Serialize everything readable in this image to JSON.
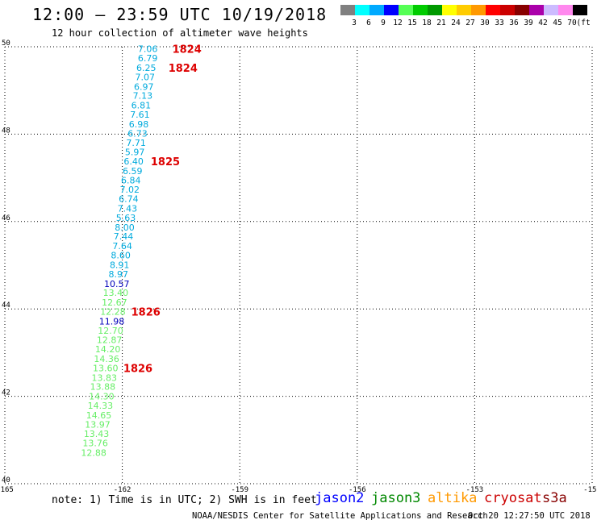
{
  "header": {
    "title": "12:00 – 23:59 UTC 10/19/2018",
    "subtitle": "12 hour collection of altimeter wave heights"
  },
  "color_scale": {
    "unit_label": "(ft)",
    "steps": [
      {
        "label": "3",
        "color": "#808080"
      },
      {
        "label": "6",
        "color": "#00ffff"
      },
      {
        "label": "9",
        "color": "#00aaff"
      },
      {
        "label": "12",
        "color": "#0000ff"
      },
      {
        "label": "15",
        "color": "#55ff55"
      },
      {
        "label": "18",
        "color": "#00cc00"
      },
      {
        "label": "21",
        "color": "#009900"
      },
      {
        "label": "24",
        "color": "#ffff00"
      },
      {
        "label": "27",
        "color": "#ffcc00"
      },
      {
        "label": "30",
        "color": "#ff9900"
      },
      {
        "label": "33",
        "color": "#ff0000"
      },
      {
        "label": "36",
        "color": "#cc0000"
      },
      {
        "label": "39",
        "color": "#880000"
      },
      {
        "label": "42",
        "color": "#aa00aa"
      },
      {
        "label": "45",
        "color": "#ccbbff"
      },
      {
        "label": "70",
        "color": "#ff88ee"
      },
      {
        "label": "",
        "color": "#000000"
      }
    ]
  },
  "chart_data": {
    "type": "scatter",
    "xlim": [
      -165,
      -150
    ],
    "ylim": [
      40,
      50
    ],
    "x_ticks": [
      "-165",
      "-162",
      "-159",
      "-156",
      "-153",
      "-150"
    ],
    "y_ticks": [
      "40",
      "42",
      "44",
      "46",
      "48",
      "50"
    ],
    "series": [
      {
        "name": "jason2",
        "color": "#0000ff"
      },
      {
        "name": "jason3",
        "color": "#008800"
      },
      {
        "name": "altika",
        "color": "#ff9900"
      },
      {
        "name": "cryosat",
        "color": "#cc0000"
      },
      {
        "name": "s3a",
        "color": "#880000"
      }
    ],
    "points": [
      {
        "lon": -161.35,
        "lat": 49.95,
        "value": "7.06",
        "color": "#00aadd"
      },
      {
        "lon": -161.35,
        "lat": 49.74,
        "value": "6.79",
        "color": "#00aadd"
      },
      {
        "lon": -161.39,
        "lat": 49.52,
        "value": "6.25",
        "color": "#00aadd"
      },
      {
        "lon": -161.42,
        "lat": 49.31,
        "value": "7.07",
        "color": "#00aadd"
      },
      {
        "lon": -161.45,
        "lat": 49.09,
        "value": "6.97",
        "color": "#00aadd"
      },
      {
        "lon": -161.48,
        "lat": 48.88,
        "value": "7.13",
        "color": "#00aadd"
      },
      {
        "lon": -161.52,
        "lat": 48.66,
        "value": "6.81",
        "color": "#00aadd"
      },
      {
        "lon": -161.55,
        "lat": 48.45,
        "value": "7.61",
        "color": "#00aadd"
      },
      {
        "lon": -161.58,
        "lat": 48.23,
        "value": "6.98",
        "color": "#00aadd"
      },
      {
        "lon": -161.61,
        "lat": 48.02,
        "value": "6.73",
        "color": "#00aadd"
      },
      {
        "lon": -161.65,
        "lat": 47.8,
        "value": "7.71",
        "color": "#00aadd"
      },
      {
        "lon": -161.68,
        "lat": 47.59,
        "value": "5.97",
        "color": "#00aadd"
      },
      {
        "lon": -161.71,
        "lat": 47.38,
        "value": "6.40",
        "color": "#00aadd"
      },
      {
        "lon": -161.74,
        "lat": 47.16,
        "value": "6.59",
        "color": "#00aadd"
      },
      {
        "lon": -161.78,
        "lat": 46.95,
        "value": "6.84",
        "color": "#00aadd"
      },
      {
        "lon": -161.81,
        "lat": 46.73,
        "value": "7.02",
        "color": "#00aadd"
      },
      {
        "lon": -161.84,
        "lat": 46.52,
        "value": "6.74",
        "color": "#00aadd"
      },
      {
        "lon": -161.87,
        "lat": 46.3,
        "value": "7.43",
        "color": "#00aadd"
      },
      {
        "lon": -161.91,
        "lat": 46.09,
        "value": "5.63",
        "color": "#00aadd"
      },
      {
        "lon": -161.94,
        "lat": 45.87,
        "value": "8.00",
        "color": "#00aadd"
      },
      {
        "lon": -161.97,
        "lat": 45.66,
        "value": "7.44",
        "color": "#00aadd"
      },
      {
        "lon": -162.0,
        "lat": 45.44,
        "value": "7.64",
        "color": "#00aadd"
      },
      {
        "lon": -162.04,
        "lat": 45.23,
        "value": "8.60",
        "color": "#00aadd"
      },
      {
        "lon": -162.07,
        "lat": 45.01,
        "value": "8.91",
        "color": "#00aadd"
      },
      {
        "lon": -162.1,
        "lat": 44.8,
        "value": "8.97",
        "color": "#00aadd"
      },
      {
        "lon": -162.14,
        "lat": 44.58,
        "value": "10.57",
        "color": "#0000bb"
      },
      {
        "lon": -162.17,
        "lat": 44.37,
        "value": "13.40",
        "color": "#66ee66"
      },
      {
        "lon": -162.2,
        "lat": 44.15,
        "value": "12.67",
        "color": "#66ee66"
      },
      {
        "lon": -162.24,
        "lat": 43.94,
        "value": "12.28",
        "color": "#66ee66"
      },
      {
        "lon": -162.27,
        "lat": 43.72,
        "value": "11.98",
        "color": "#0000bb"
      },
      {
        "lon": -162.3,
        "lat": 43.51,
        "value": "12.70",
        "color": "#66ee66"
      },
      {
        "lon": -162.33,
        "lat": 43.29,
        "value": "12.87",
        "color": "#66ee66"
      },
      {
        "lon": -162.37,
        "lat": 43.08,
        "value": "14.20",
        "color": "#66ee66"
      },
      {
        "lon": -162.4,
        "lat": 42.86,
        "value": "14.36",
        "color": "#66ee66"
      },
      {
        "lon": -162.43,
        "lat": 42.65,
        "value": "13.60",
        "color": "#66ee66"
      },
      {
        "lon": -162.46,
        "lat": 42.43,
        "value": "13.83",
        "color": "#66ee66"
      },
      {
        "lon": -162.5,
        "lat": 42.22,
        "value": "13.88",
        "color": "#66ee66"
      },
      {
        "lon": -162.53,
        "lat": 42.0,
        "value": "14.30",
        "color": "#66ee66"
      },
      {
        "lon": -162.56,
        "lat": 41.79,
        "value": "14.33",
        "color": "#66ee66"
      },
      {
        "lon": -162.6,
        "lat": 41.57,
        "value": "14.65",
        "color": "#66ee66"
      },
      {
        "lon": -162.63,
        "lat": 41.36,
        "value": "13.97",
        "color": "#66ee66"
      },
      {
        "lon": -162.66,
        "lat": 41.14,
        "value": "13.43",
        "color": "#66ee66"
      },
      {
        "lon": -162.69,
        "lat": 40.93,
        "value": "13.76",
        "color": "#66ee66"
      },
      {
        "lon": -162.73,
        "lat": 40.71,
        "value": "12.88",
        "color": "#66ee66"
      }
    ],
    "time_labels": [
      {
        "lon": -160.35,
        "lat": 49.95,
        "text": "1824",
        "color": "#dd0000"
      },
      {
        "lon": -160.45,
        "lat": 49.52,
        "text": "1824",
        "color": "#dd0000"
      },
      {
        "lon": -160.9,
        "lat": 47.38,
        "text": "1825",
        "color": "#dd0000"
      },
      {
        "lon": -161.4,
        "lat": 43.94,
        "text": "1826",
        "color": "#dd0000"
      },
      {
        "lon": -161.6,
        "lat": 42.65,
        "text": "1826",
        "color": "#dd0000"
      }
    ]
  },
  "footer": {
    "note": "note: 1) Time is in UTC; 2) SWH is in feet",
    "credit": "NOAA/NESDIS Center for Satellite Applications and Research",
    "timestamp": "Oct 20 12:27:50 UTC 2018"
  }
}
